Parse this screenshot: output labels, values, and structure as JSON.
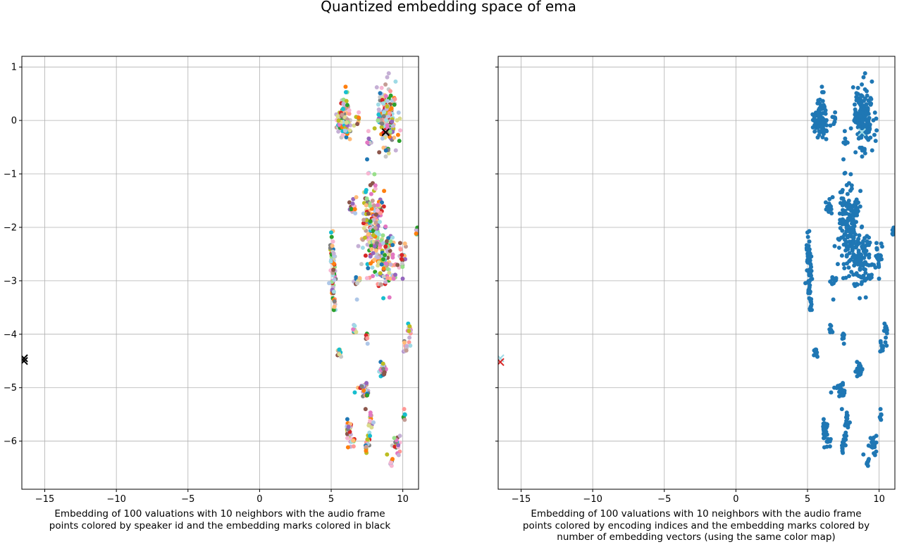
{
  "title": "Quantized embedding space of ema",
  "chart_data": [
    {
      "type": "scatter",
      "xlabel": "Embedding of 100 valuations with 10 neighbors with the audio frame points colored by speaker id and the embedding marks colored in black",
      "xlim": [
        -16.6,
        11.1
      ],
      "ylim": [
        -6.9,
        1.2
      ],
      "xticks": [
        -15,
        -10,
        -5,
        0,
        5,
        10
      ],
      "yticks": [
        1,
        0,
        -1,
        -2,
        -3,
        -4,
        -5,
        -6
      ],
      "xtick_labels": [
        "−15",
        "−10",
        "−5",
        "0",
        "5",
        "10"
      ],
      "ytick_labels": [
        "1",
        "0",
        "−1",
        "−2",
        "−3",
        "−4",
        "−5",
        "−6"
      ],
      "grid": true,
      "point_coloring": "speaker id (categorical palette)",
      "clusters": [
        {
          "x": 5.9,
          "y": 0.05,
          "sx": 0.25,
          "sy": 0.2,
          "n": 90
        },
        {
          "x": 8.9,
          "y": 0.1,
          "sx": 0.35,
          "sy": 0.3,
          "n": 150
        },
        {
          "x": 6.9,
          "y": 0.05,
          "sx": 0.1,
          "sy": 0.05,
          "n": 8
        },
        {
          "x": 7.75,
          "y": -0.38,
          "sx": 0.08,
          "sy": 0.05,
          "n": 6
        },
        {
          "x": 6.5,
          "y": -1.6,
          "sx": 0.12,
          "sy": 0.08,
          "n": 12
        },
        {
          "x": 7.9,
          "y": -1.95,
          "sx": 0.4,
          "sy": 0.35,
          "n": 160
        },
        {
          "x": 8.7,
          "y": -2.6,
          "sx": 0.4,
          "sy": 0.3,
          "n": 110
        },
        {
          "x": 9.9,
          "y": -2.6,
          "sx": 0.1,
          "sy": 0.15,
          "n": 20
        },
        {
          "x": 11.0,
          "y": -2.1,
          "sx": 0.06,
          "sy": 0.05,
          "n": 8
        },
        {
          "x": 5.1,
          "y": -2.7,
          "sx": 0.1,
          "sy": 0.3,
          "n": 60
        },
        {
          "x": 6.8,
          "y": -3.0,
          "sx": 0.1,
          "sy": 0.07,
          "n": 10
        },
        {
          "x": 5.2,
          "y": -3.4,
          "sx": 0.07,
          "sy": 0.1,
          "n": 12
        },
        {
          "x": 6.6,
          "y": -3.85,
          "sx": 0.06,
          "sy": 0.08,
          "n": 10
        },
        {
          "x": 7.5,
          "y": -4.05,
          "sx": 0.06,
          "sy": 0.05,
          "n": 8
        },
        {
          "x": 10.45,
          "y": -3.95,
          "sx": 0.08,
          "sy": 0.1,
          "n": 15
        },
        {
          "x": 10.2,
          "y": -4.25,
          "sx": 0.06,
          "sy": 0.1,
          "n": 10
        },
        {
          "x": 5.6,
          "y": -4.4,
          "sx": 0.08,
          "sy": 0.07,
          "n": 12
        },
        {
          "x": 8.6,
          "y": -4.65,
          "sx": 0.12,
          "sy": 0.08,
          "n": 25
        },
        {
          "x": 7.2,
          "y": -5.0,
          "sx": 0.25,
          "sy": 0.07,
          "n": 20
        },
        {
          "x": 7.5,
          "y": -5.13,
          "sx": 0.05,
          "sy": 0.04,
          "n": 6
        },
        {
          "x": 6.2,
          "y": -5.8,
          "sx": 0.15,
          "sy": 0.12,
          "n": 30
        },
        {
          "x": 6.55,
          "y": -6.0,
          "sx": 0.05,
          "sy": 0.05,
          "n": 6
        },
        {
          "x": 7.75,
          "y": -5.6,
          "sx": 0.06,
          "sy": 0.08,
          "n": 12
        },
        {
          "x": 7.6,
          "y": -5.95,
          "sx": 0.08,
          "sy": 0.08,
          "n": 10
        },
        {
          "x": 7.45,
          "y": -6.12,
          "sx": 0.05,
          "sy": 0.05,
          "n": 8
        },
        {
          "x": 9.6,
          "y": -6.1,
          "sx": 0.12,
          "sy": 0.1,
          "n": 20
        },
        {
          "x": 10.1,
          "y": -5.5,
          "sx": 0.05,
          "sy": 0.08,
          "n": 8
        },
        {
          "x": 9.2,
          "y": -6.4,
          "sx": 0.05,
          "sy": 0.05,
          "n": 8
        }
      ],
      "outliers": [
        {
          "x": 7.4,
          "y": -5.4
        },
        {
          "x": 7.95,
          "y": -5.65
        },
        {
          "x": 8.9,
          "y": -6.25
        },
        {
          "x": 6.8,
          "y": -3.35
        },
        {
          "x": 7.6,
          "y": -0.2
        },
        {
          "x": 7.5,
          "y": -2.95
        },
        {
          "x": 9.8,
          "y": -5.9
        }
      ],
      "marks": [
        {
          "x": 8.8,
          "y": -0.22,
          "color": "#000000"
        },
        {
          "x": -16.45,
          "y": -4.45,
          "color": "#000000"
        },
        {
          "x": -16.45,
          "y": -4.5,
          "color": "#000000"
        }
      ]
    },
    {
      "type": "scatter",
      "xlabel": "Embedding of 100 valuations with 10 neighbors with the audio frame points colored by encoding indices and the embedding marks colored by number of embedding vectors (using the same color map)",
      "xlim": [
        -16.6,
        11.1
      ],
      "ylim": [
        -6.9,
        1.2
      ],
      "xticks": [
        -15,
        -10,
        -5,
        0,
        5,
        10
      ],
      "yticks": [
        1,
        0,
        -1,
        -2,
        -3,
        -4,
        -5,
        -6
      ],
      "xtick_labels": [
        "−15",
        "−10",
        "−5",
        "0",
        "5",
        "10"
      ],
      "ytick_labels": [
        "",
        "",
        "",
        "",
        "",
        "",
        "",
        ""
      ],
      "grid": true,
      "point_coloring": "encoding indices",
      "point_color": "#1f77b4",
      "same_point_layout_as": "left",
      "marks": [
        {
          "x": 8.8,
          "y": -0.22,
          "color": "#9edae5"
        },
        {
          "x": -16.45,
          "y": -4.45,
          "color": "#9edae5"
        },
        {
          "x": -16.45,
          "y": -4.52,
          "color": "#d62728"
        }
      ]
    }
  ],
  "palette": [
    "#1f77b4",
    "#ff7f0e",
    "#2ca02c",
    "#d62728",
    "#9467bd",
    "#8c564b",
    "#e377c2",
    "#7f7f7f",
    "#bcbd22",
    "#17becf",
    "#aec7e8",
    "#ffbb78",
    "#98df8a",
    "#ff9896",
    "#c5b0d5",
    "#c49c94",
    "#f7b6d2",
    "#c7c7c7",
    "#dbdb8d",
    "#9edae5"
  ]
}
